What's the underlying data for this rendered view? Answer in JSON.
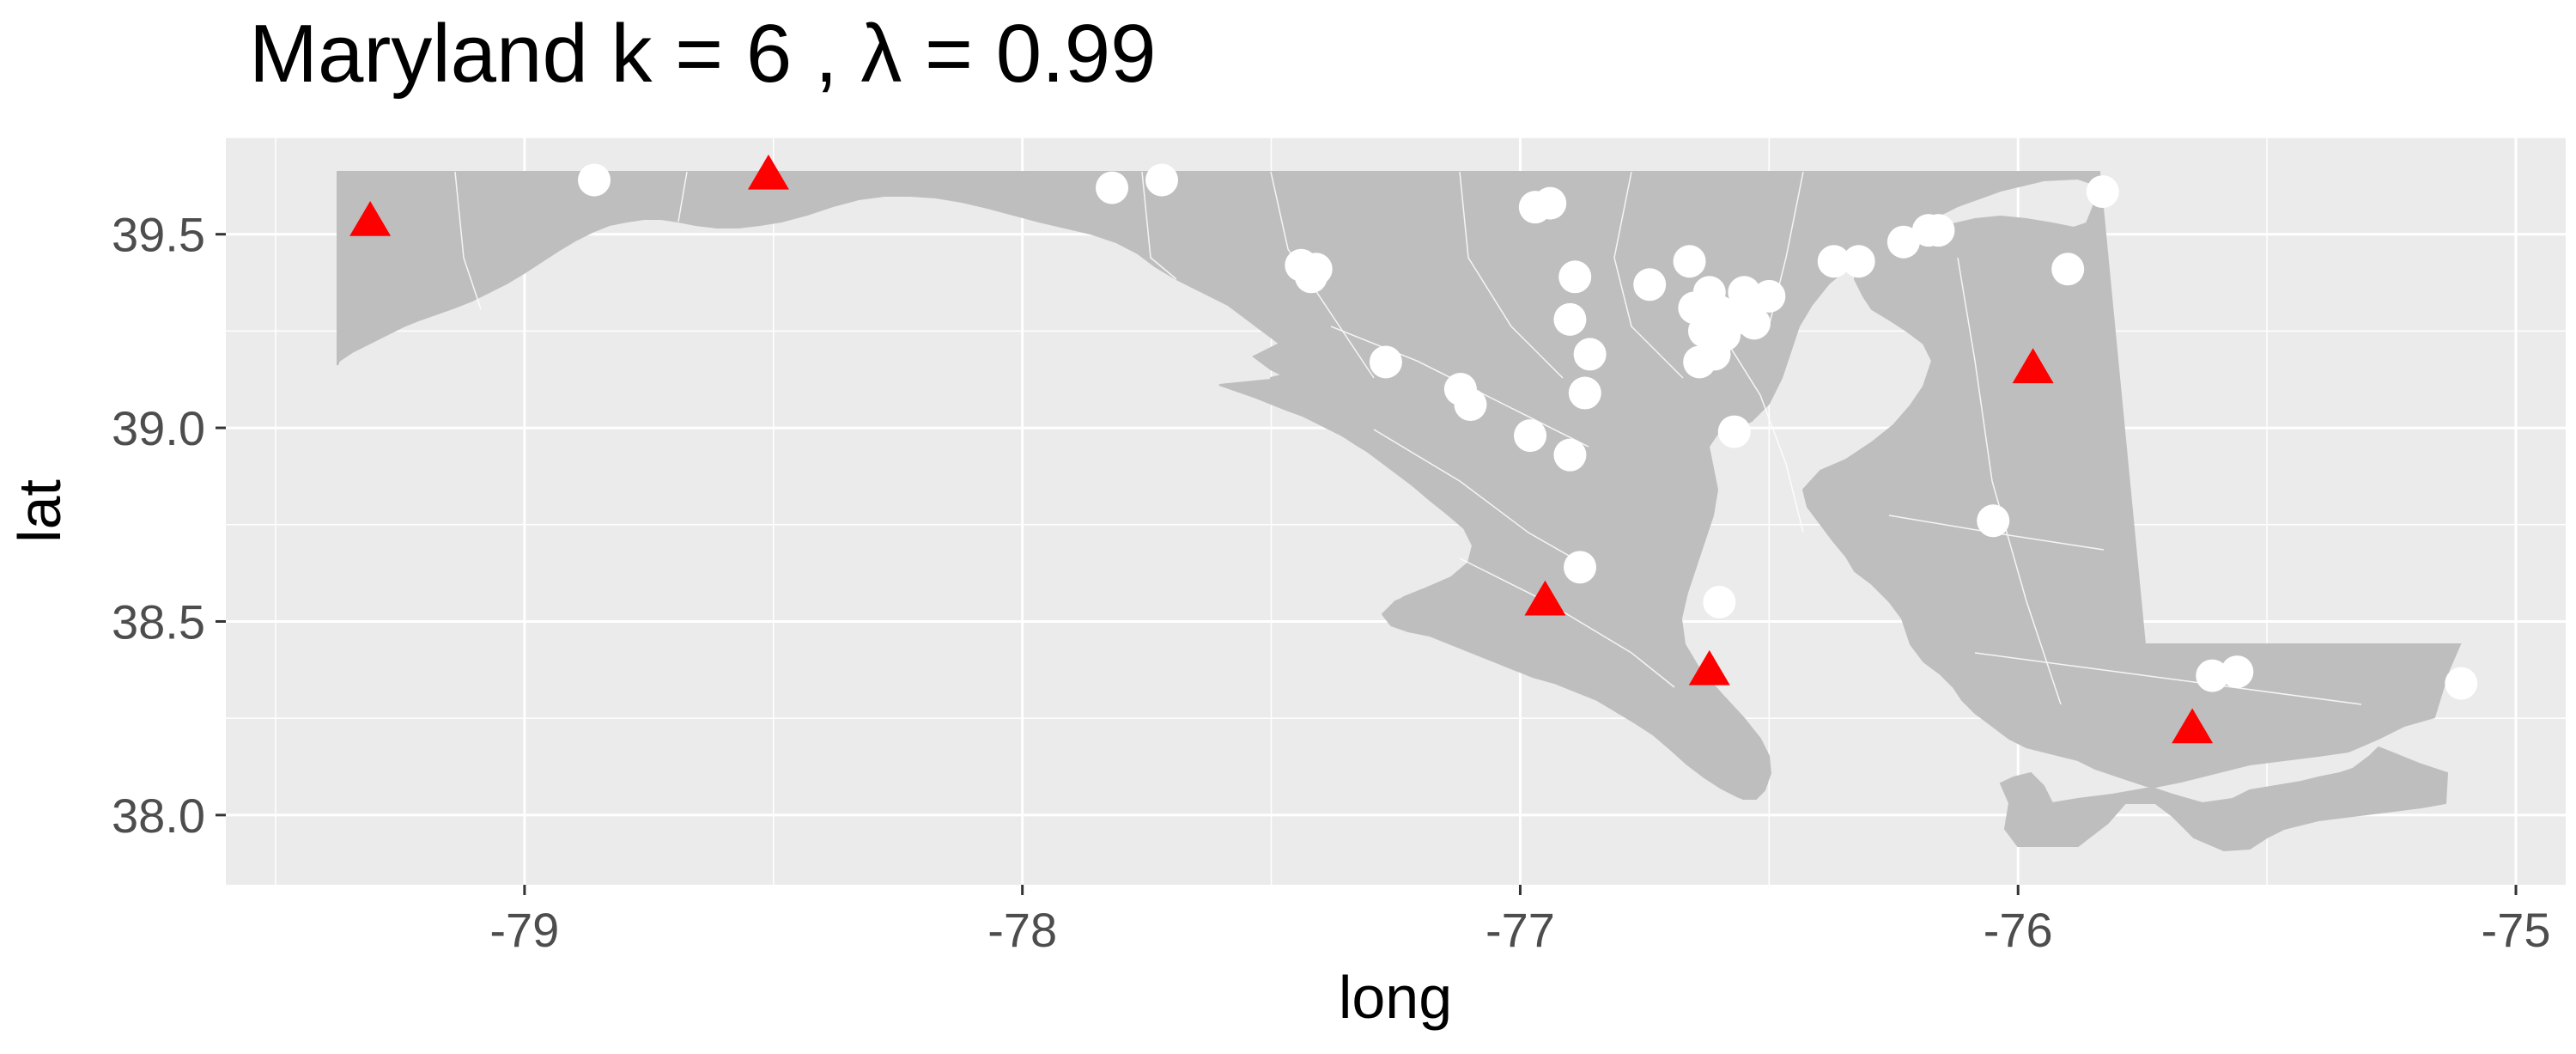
{
  "chart_data": {
    "type": "scatter",
    "title": "Maryland  k =  6 ,  λ  =  0.99",
    "xlabel": "long",
    "ylabel": "lat",
    "xlim": [
      -79.6,
      -74.9
    ],
    "ylim": [
      37.82,
      39.75
    ],
    "x_ticks": [
      -79,
      -78,
      -77,
      -76,
      -75
    ],
    "y_ticks": [
      38.0,
      38.5,
      39.0,
      39.5
    ],
    "x_tick_labels": [
      "-79",
      "-78",
      "-77",
      "-76",
      "-75"
    ],
    "y_tick_labels": [
      "38.0",
      "38.5",
      "39.0",
      "39.5"
    ],
    "grid": true,
    "legend": "none",
    "colors": {
      "panel": "#ebebeb",
      "grid": "#ffffff",
      "land": "#bebebe",
      "border": "#ffffff",
      "demand_point": "#ffffff",
      "facility": "#ff0000"
    },
    "series": [
      {
        "marker": "circle",
        "color": "#ffffff",
        "points": [
          [
            -78.86,
            39.64
          ],
          [
            -77.82,
            39.62
          ],
          [
            -77.72,
            39.64
          ],
          [
            -76.97,
            39.57
          ],
          [
            -76.94,
            39.58
          ],
          [
            -77.44,
            39.42
          ],
          [
            -77.41,
            39.41
          ],
          [
            -77.42,
            39.39
          ],
          [
            -76.89,
            39.39
          ],
          [
            -76.74,
            39.37
          ],
          [
            -76.66,
            39.43
          ],
          [
            -76.62,
            39.35
          ],
          [
            -76.55,
            39.35
          ],
          [
            -76.5,
            39.34
          ],
          [
            -76.65,
            39.31
          ],
          [
            -76.6,
            39.3
          ],
          [
            -76.62,
            39.28
          ],
          [
            -76.57,
            39.28
          ],
          [
            -76.55,
            39.3
          ],
          [
            -76.63,
            39.25
          ],
          [
            -76.59,
            39.24
          ],
          [
            -76.53,
            39.27
          ],
          [
            -76.64,
            39.17
          ],
          [
            -76.61,
            39.19
          ],
          [
            -76.37,
            39.43
          ],
          [
            -76.32,
            39.43
          ],
          [
            -76.23,
            39.48
          ],
          [
            -76.18,
            39.51
          ],
          [
            -76.16,
            39.51
          ],
          [
            -75.83,
            39.61
          ],
          [
            -75.9,
            39.41
          ],
          [
            -76.9,
            39.28
          ],
          [
            -76.86,
            39.19
          ],
          [
            -77.27,
            39.17
          ],
          [
            -77.12,
            39.1
          ],
          [
            -77.1,
            39.06
          ],
          [
            -76.87,
            39.09
          ],
          [
            -76.98,
            38.98
          ],
          [
            -76.9,
            38.93
          ],
          [
            -76.57,
            38.99
          ],
          [
            -76.05,
            38.76
          ],
          [
            -76.88,
            38.64
          ],
          [
            -76.6,
            38.55
          ],
          [
            -75.61,
            38.36
          ],
          [
            -75.56,
            38.37
          ],
          [
            -75.11,
            38.34
          ]
        ]
      },
      {
        "marker": "triangle",
        "color": "#ff0000",
        "points": [
          [
            -79.31,
            39.53
          ],
          [
            -78.51,
            39.65
          ],
          [
            -75.97,
            39.15
          ],
          [
            -76.95,
            38.55
          ],
          [
            -76.62,
            38.37
          ],
          [
            -75.65,
            38.22
          ]
        ]
      }
    ]
  }
}
